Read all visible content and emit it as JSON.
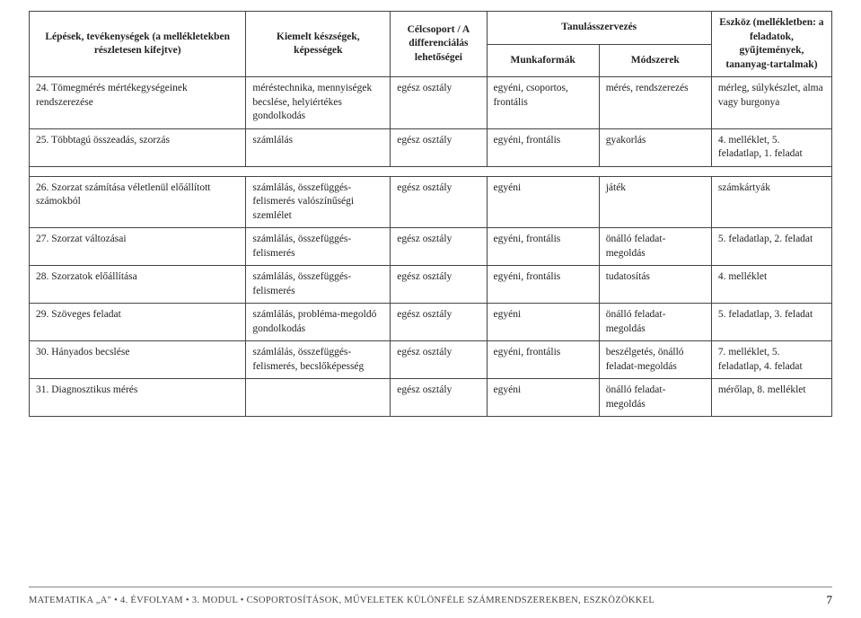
{
  "header": {
    "col1": "Lépések, tevékenységek\n(a mellékletekben részletesen kifejtve)",
    "col2": "Kiemelt készségek, képességek",
    "col3": "Célcsoport /\nA differenciálás lehetőségei",
    "col4": "Tanulásszervezés",
    "col4a": "Munkaformák",
    "col4b": "Módszerek",
    "col5": "Eszköz\n(mellékletben: a feladatok, gyűjtemények, tananyag-tartalmak)"
  },
  "rowsA": [
    {
      "c1": "24. Tömegmérés mértékegységeinek rendszerezése",
      "c2": "méréstechnika, mennyiségek becslése, helyiértékes gondolkodás",
      "c3": "egész osztály",
      "c4": "egyéni, csoportos, frontális",
      "c5": "mérés, rendszerezés",
      "c6": "mérleg, súlykészlet, alma vagy burgonya"
    },
    {
      "c1": "25. Többtagú összeadás, szorzás",
      "c2": "számlálás",
      "c3": "egész osztály",
      "c4": "egyéni, frontális",
      "c5": "gyakorlás",
      "c6": "4. melléklet, 5. feladatlap, 1. feladat"
    }
  ],
  "rowsB": [
    {
      "c1": "26. Szorzat számítása véletlenül előállított számokból",
      "c2": "számlálás, összefüggés-felismerés valószínűségi szemlélet",
      "c3": "egész osztály",
      "c4": "egyéni",
      "c5": "játék",
      "c6": "számkártyák"
    },
    {
      "c1": "27. Szorzat változásai",
      "c2": "számlálás, összefüggés-felismerés",
      "c3": "egész osztály",
      "c4": "egyéni, frontális",
      "c5": "önálló feladat-megoldás",
      "c6": "5. feladatlap, 2. feladat"
    },
    {
      "c1": "28. Szorzatok előállítása",
      "c2": "számlálás, összefüggés-felismerés",
      "c3": "egész osztály",
      "c4": "egyéni, frontális",
      "c5": "tudatosítás",
      "c6": "4. melléklet"
    },
    {
      "c1": "29. Szöveges feladat",
      "c2": "számlálás, probléma-megoldó gondolkodás",
      "c3": "egész osztály",
      "c4": "egyéni",
      "c5": "önálló feladat-megoldás",
      "c6": "5. feladatlap, 3. feladat"
    },
    {
      "c1": "30. Hányados becslése",
      "c2": "számlálás, összefüggés-felismerés, becslőképesség",
      "c3": "egész osztály",
      "c4": "egyéni, frontális",
      "c5": "beszélgetés, önálló feladat-megoldás",
      "c6": "7. melléklet, 5. feladatlap, 4. feladat"
    },
    {
      "c1": "31. Diagnosztikus mérés",
      "c2": "",
      "c3": "egész osztály",
      "c4": "egyéni",
      "c5": "önálló feladat-megoldás",
      "c6": "mérőlap, 8. melléklet"
    }
  ],
  "footer": {
    "left_a": "MATEMATIKA „A\" • 4. ÉVFOLYAM • ",
    "left_b": "3. MODUL • CSOPORTOSÍTÁSOK, MŰVELETEK KÜLÖNFÉLE SZÁMRENDSZEREKBEN, ESZKÖZÖKKEL",
    "page": "7"
  },
  "colwidths": [
    "27%",
    "18%",
    "12%",
    "14%",
    "14%",
    "15%"
  ]
}
